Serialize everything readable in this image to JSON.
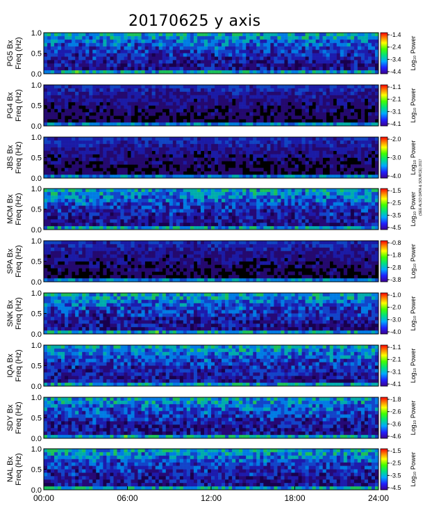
{
  "title": "20170625 y axis",
  "side_note": "(SEE ALSO DATA & SOURCE) 2017",
  "colors": {
    "background": "#000000",
    "frame": "#000000"
  },
  "chart_data": {
    "type": "heatmap",
    "title": "20170625 y axis",
    "x_axis": {
      "ticks": [
        "00:00",
        "06:00",
        "12:00",
        "18:00",
        "24:00"
      ],
      "range_hours": [
        0,
        24
      ]
    },
    "panels": [
      {
        "station": "PG5",
        "ylabel": "PG5 Bx\nFreq (Hz)",
        "yticks": [
          "0.0",
          "0.5",
          "1.0"
        ],
        "ylim": [
          0,
          1
        ],
        "cbar_label": "Log₁₀ Power",
        "cbar_ticks": [
          "-1.4",
          "-2.4",
          "-3.4",
          "-4.4"
        ],
        "cbar_range": [
          -4.4,
          -1.4
        ]
      },
      {
        "station": "PG4",
        "ylabel": "PG4 Bx\nFreq (Hz)",
        "yticks": [
          "0.0",
          "0.5",
          "1.0"
        ],
        "ylim": [
          0,
          1
        ],
        "cbar_label": "Log₁₀ Power",
        "cbar_ticks": [
          "-1.1",
          "-2.1",
          "-3.1",
          "-4.1"
        ],
        "cbar_range": [
          -4.1,
          -1.1
        ]
      },
      {
        "station": "JBS",
        "ylabel": "JBS Bx\nFreq (Hz)",
        "yticks": [
          "0.0",
          "0.5",
          "1.0"
        ],
        "ylim": [
          0,
          1
        ],
        "cbar_label": "Log₁₀ Power",
        "cbar_ticks": [
          "-2.0",
          "-3.0",
          "-4.0"
        ],
        "cbar_range": [
          -4.0,
          -2.0
        ]
      },
      {
        "station": "MCM",
        "ylabel": "MCM Bx\nFreq (Hz)",
        "yticks": [
          "0.0",
          "0.5",
          "1.0"
        ],
        "ylim": [
          0,
          1
        ],
        "cbar_label": "Log₁₀ Power",
        "cbar_ticks": [
          "-1.5",
          "-2.5",
          "-3.5",
          "-4.5"
        ],
        "cbar_range": [
          -4.5,
          -1.5
        ]
      },
      {
        "station": "SPA",
        "ylabel": "SPA Bx\nFreq (Hz)",
        "yticks": [
          "0.0",
          "0.5",
          "1.0"
        ],
        "ylim": [
          0,
          1
        ],
        "cbar_label": "Log₁₀ Power",
        "cbar_ticks": [
          "-0.8",
          "-1.8",
          "-2.8",
          "-3.8"
        ],
        "cbar_range": [
          -3.8,
          -0.8
        ]
      },
      {
        "station": "SNK",
        "ylabel": "SNK Bx\nFreq (Hz)",
        "yticks": [
          "0.0",
          "0.5",
          "1.0"
        ],
        "ylim": [
          0,
          1
        ],
        "cbar_label": "Log₁₀ Power",
        "cbar_ticks": [
          "-1.0",
          "-2.0",
          "-3.0",
          "-4.0"
        ],
        "cbar_range": [
          -4.0,
          -1.0
        ]
      },
      {
        "station": "IQA",
        "ylabel": "IQA Bx\nFreq (Hz)",
        "yticks": [
          "0.0",
          "0.5",
          "1.0"
        ],
        "ylim": [
          0,
          1
        ],
        "cbar_label": "Log₁₀ Power",
        "cbar_ticks": [
          "-1.1",
          "-2.1",
          "-3.1",
          "-4.1"
        ],
        "cbar_range": [
          -4.1,
          -1.1
        ]
      },
      {
        "station": "SDY",
        "ylabel": "SDY Bx\nFreq (Hz)",
        "yticks": [
          "0.0",
          "0.5",
          "1.0"
        ],
        "ylim": [
          0,
          1
        ],
        "cbar_label": "Log₁₀ Power",
        "cbar_ticks": [
          "-1.8",
          "-2.6",
          "-3.6",
          "-4.6"
        ],
        "cbar_range": [
          -4.6,
          -1.8
        ]
      },
      {
        "station": "NAL",
        "ylabel": "NAL Bx\nFreq (Hz)",
        "yticks": [
          "0.0",
          "0.5",
          "1.0"
        ],
        "ylim": [
          0,
          1
        ],
        "cbar_label": "Log₁₀ Power",
        "cbar_ticks": [
          "-1.5",
          "-2.5",
          "-3.5",
          "-4.5"
        ],
        "cbar_range": [
          -4.5,
          -1.5
        ]
      }
    ]
  }
}
